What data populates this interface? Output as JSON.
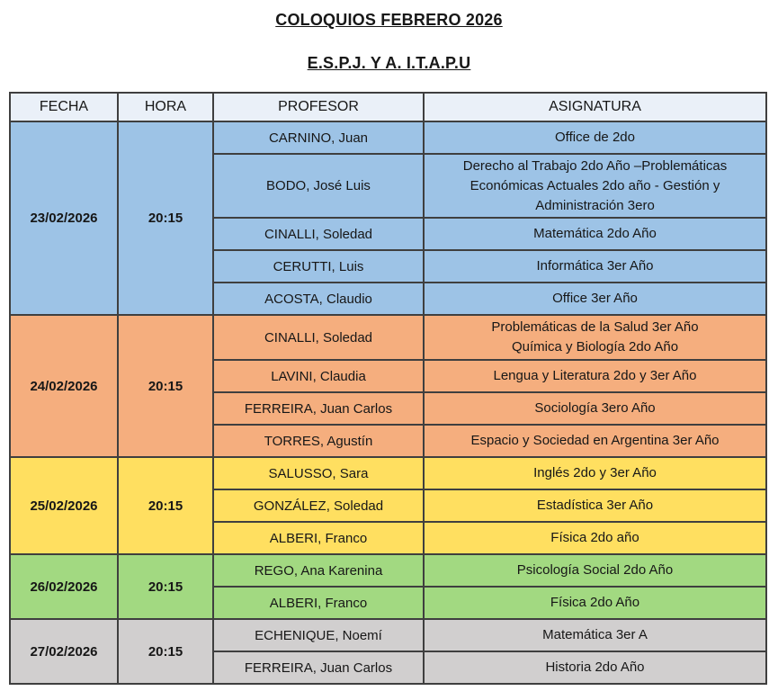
{
  "titles": {
    "main": "COLOQUIOS FEBRERO 2026",
    "sub": "E.S.P.J. Y A. I.T.A.P.U"
  },
  "table": {
    "headers": [
      "FECHA",
      "HORA",
      "PROFESOR",
      "ASIGNATURA"
    ],
    "header_bg": "#EAF0F8",
    "border_color": "#3F3F3F",
    "groups": [
      {
        "fecha": "23/02/2026",
        "hora": "20:15",
        "color": "#9DC3E6",
        "rows": [
          {
            "profesor": "CARNINO, Juan",
            "asignatura": "Office de 2do"
          },
          {
            "profesor": "BODO, José Luis",
            "asignatura": "Derecho al Trabajo 2do Año –Problemáticas\nEconómicas Actuales 2do año -  Gestión y\nAdministración 3ero"
          },
          {
            "profesor": "CINALLI, Soledad",
            "asignatura": "Matemática 2do Año"
          },
          {
            "profesor": "CERUTTI, Luis",
            "asignatura": "Informática 3er Año"
          },
          {
            "profesor": "ACOSTA, Claudio",
            "asignatura": "Office 3er Año"
          }
        ]
      },
      {
        "fecha": "24/02/2026",
        "hora": "20:15",
        "color": "#F5AE7E",
        "rows": [
          {
            "profesor": "CINALLI, Soledad",
            "asignatura": "Problemáticas de la Salud 3er Año\nQuímica y Biología 2do Año"
          },
          {
            "profesor": "LAVINI, Claudia",
            "asignatura": "Lengua y Literatura 2do y 3er Año"
          },
          {
            "profesor": "FERREIRA, Juan Carlos",
            "asignatura": "Sociología 3ero Año"
          },
          {
            "profesor": "TORRES, Agustín",
            "asignatura": "Espacio y Sociedad en Argentina 3er Año"
          }
        ]
      },
      {
        "fecha": "25/02/2026",
        "hora": "20:15",
        "color": "#FFDF60",
        "rows": [
          {
            "profesor": "SALUSSO, Sara",
            "asignatura": "Inglés 2do y 3er Año"
          },
          {
            "profesor": "GONZÁLEZ, Soledad",
            "asignatura": "Estadística 3er Año"
          },
          {
            "profesor": "ALBERI, Franco",
            "asignatura": "Física 2do año"
          }
        ]
      },
      {
        "fecha": "26/02/2026",
        "hora": "20:15",
        "color": "#A2D981",
        "rows": [
          {
            "profesor": "REGO, Ana Karenina",
            "asignatura": "Psicología Social 2do Año"
          },
          {
            "profesor": "ALBERI, Franco",
            "asignatura": "Física 2do Año"
          }
        ]
      },
      {
        "fecha": "27/02/2026",
        "hora": "20:15",
        "color": "#D1CFCF",
        "rows": [
          {
            "profesor": "ECHENIQUE, Noemí",
            "asignatura": "Matemática 3er A"
          },
          {
            "profesor": "FERREIRA, Juan Carlos",
            "asignatura": "Historia 2do Año"
          }
        ]
      }
    ]
  }
}
